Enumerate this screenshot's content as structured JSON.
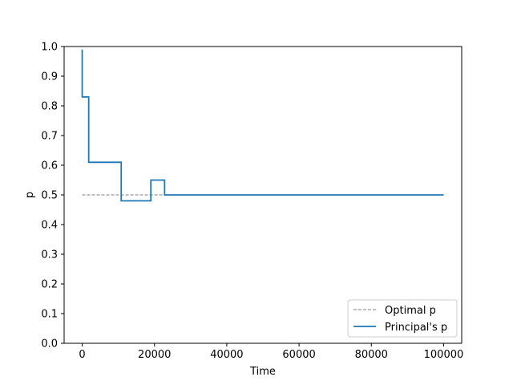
{
  "chart_data": {
    "type": "line",
    "title": "",
    "xlabel": "Time",
    "ylabel": "p",
    "xlim": [
      -5000,
      105000
    ],
    "ylim": [
      0.0,
      1.0
    ],
    "x_ticks": [
      0,
      20000,
      40000,
      60000,
      80000,
      100000
    ],
    "y_ticks": [
      0.0,
      0.1,
      0.2,
      0.3,
      0.4,
      0.5,
      0.6,
      0.7,
      0.8,
      0.9,
      1.0
    ],
    "grid": false,
    "legend_position": "lower-right",
    "series": [
      {
        "name": "Optimal p",
        "style": "dashed",
        "color": "#808080",
        "x": [
          0,
          100000
        ],
        "y": [
          0.5,
          0.5
        ]
      },
      {
        "name": "Principal's p",
        "style": "step",
        "color": "#1f77b4",
        "x": [
          0,
          0,
          1800,
          1800,
          10800,
          10800,
          19000,
          19000,
          22800,
          22800,
          100000
        ],
        "y": [
          0.99,
          0.83,
          0.83,
          0.61,
          0.61,
          0.48,
          0.48,
          0.55,
          0.55,
          0.5,
          0.5
        ]
      }
    ]
  }
}
